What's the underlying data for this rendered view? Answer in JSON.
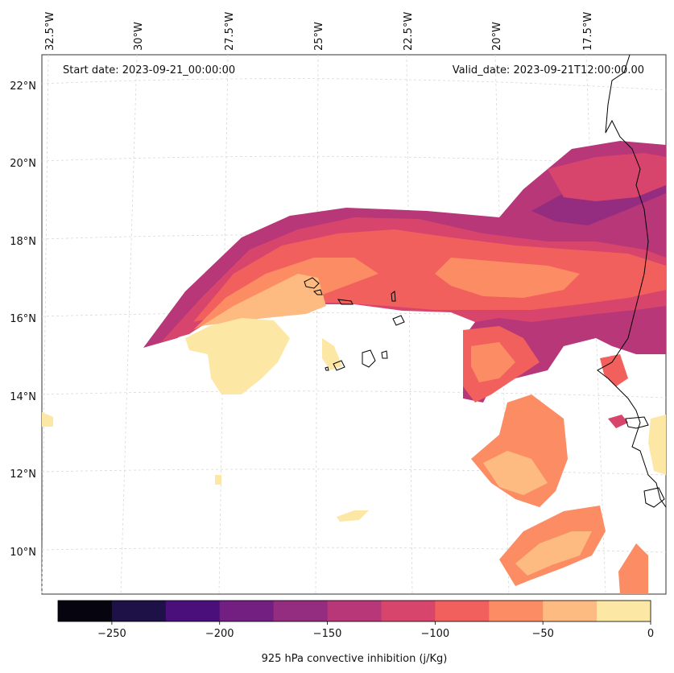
{
  "header": {
    "start_date": "Start date: 2023-09-21_00:00:00",
    "valid_date": "Valid_date: 2023-09-21T12:00:00.00"
  },
  "axes": {
    "lat_labels": [
      "22°N",
      "20°N",
      "18°N",
      "16°N",
      "14°N",
      "12°N",
      "10°N"
    ],
    "lon_labels": [
      "32.5°W",
      "30°W",
      "27.5°W",
      "25°W",
      "22.5°W",
      "20°W",
      "17.5°W"
    ]
  },
  "colorbar": {
    "title": "925 hPa convective inhibition (j/Kg)",
    "tick_labels": [
      "−250",
      "−200",
      "−150",
      "−100",
      "−50",
      "0"
    ],
    "levels": [
      -275,
      -250,
      -225,
      -200,
      -175,
      -150,
      -125,
      -100,
      -75,
      -50,
      -25,
      0
    ],
    "colors": [
      "#05040f",
      "#1d1147",
      "#4a0f7a",
      "#721f81",
      "#942c80",
      "#b73779",
      "#d8456c",
      "#f1605d",
      "#fb8c63",
      "#febb81",
      "#fde7a5"
    ]
  },
  "legend_semantics": {
    "field": "convective inhibition",
    "units": "j/Kg"
  }
}
